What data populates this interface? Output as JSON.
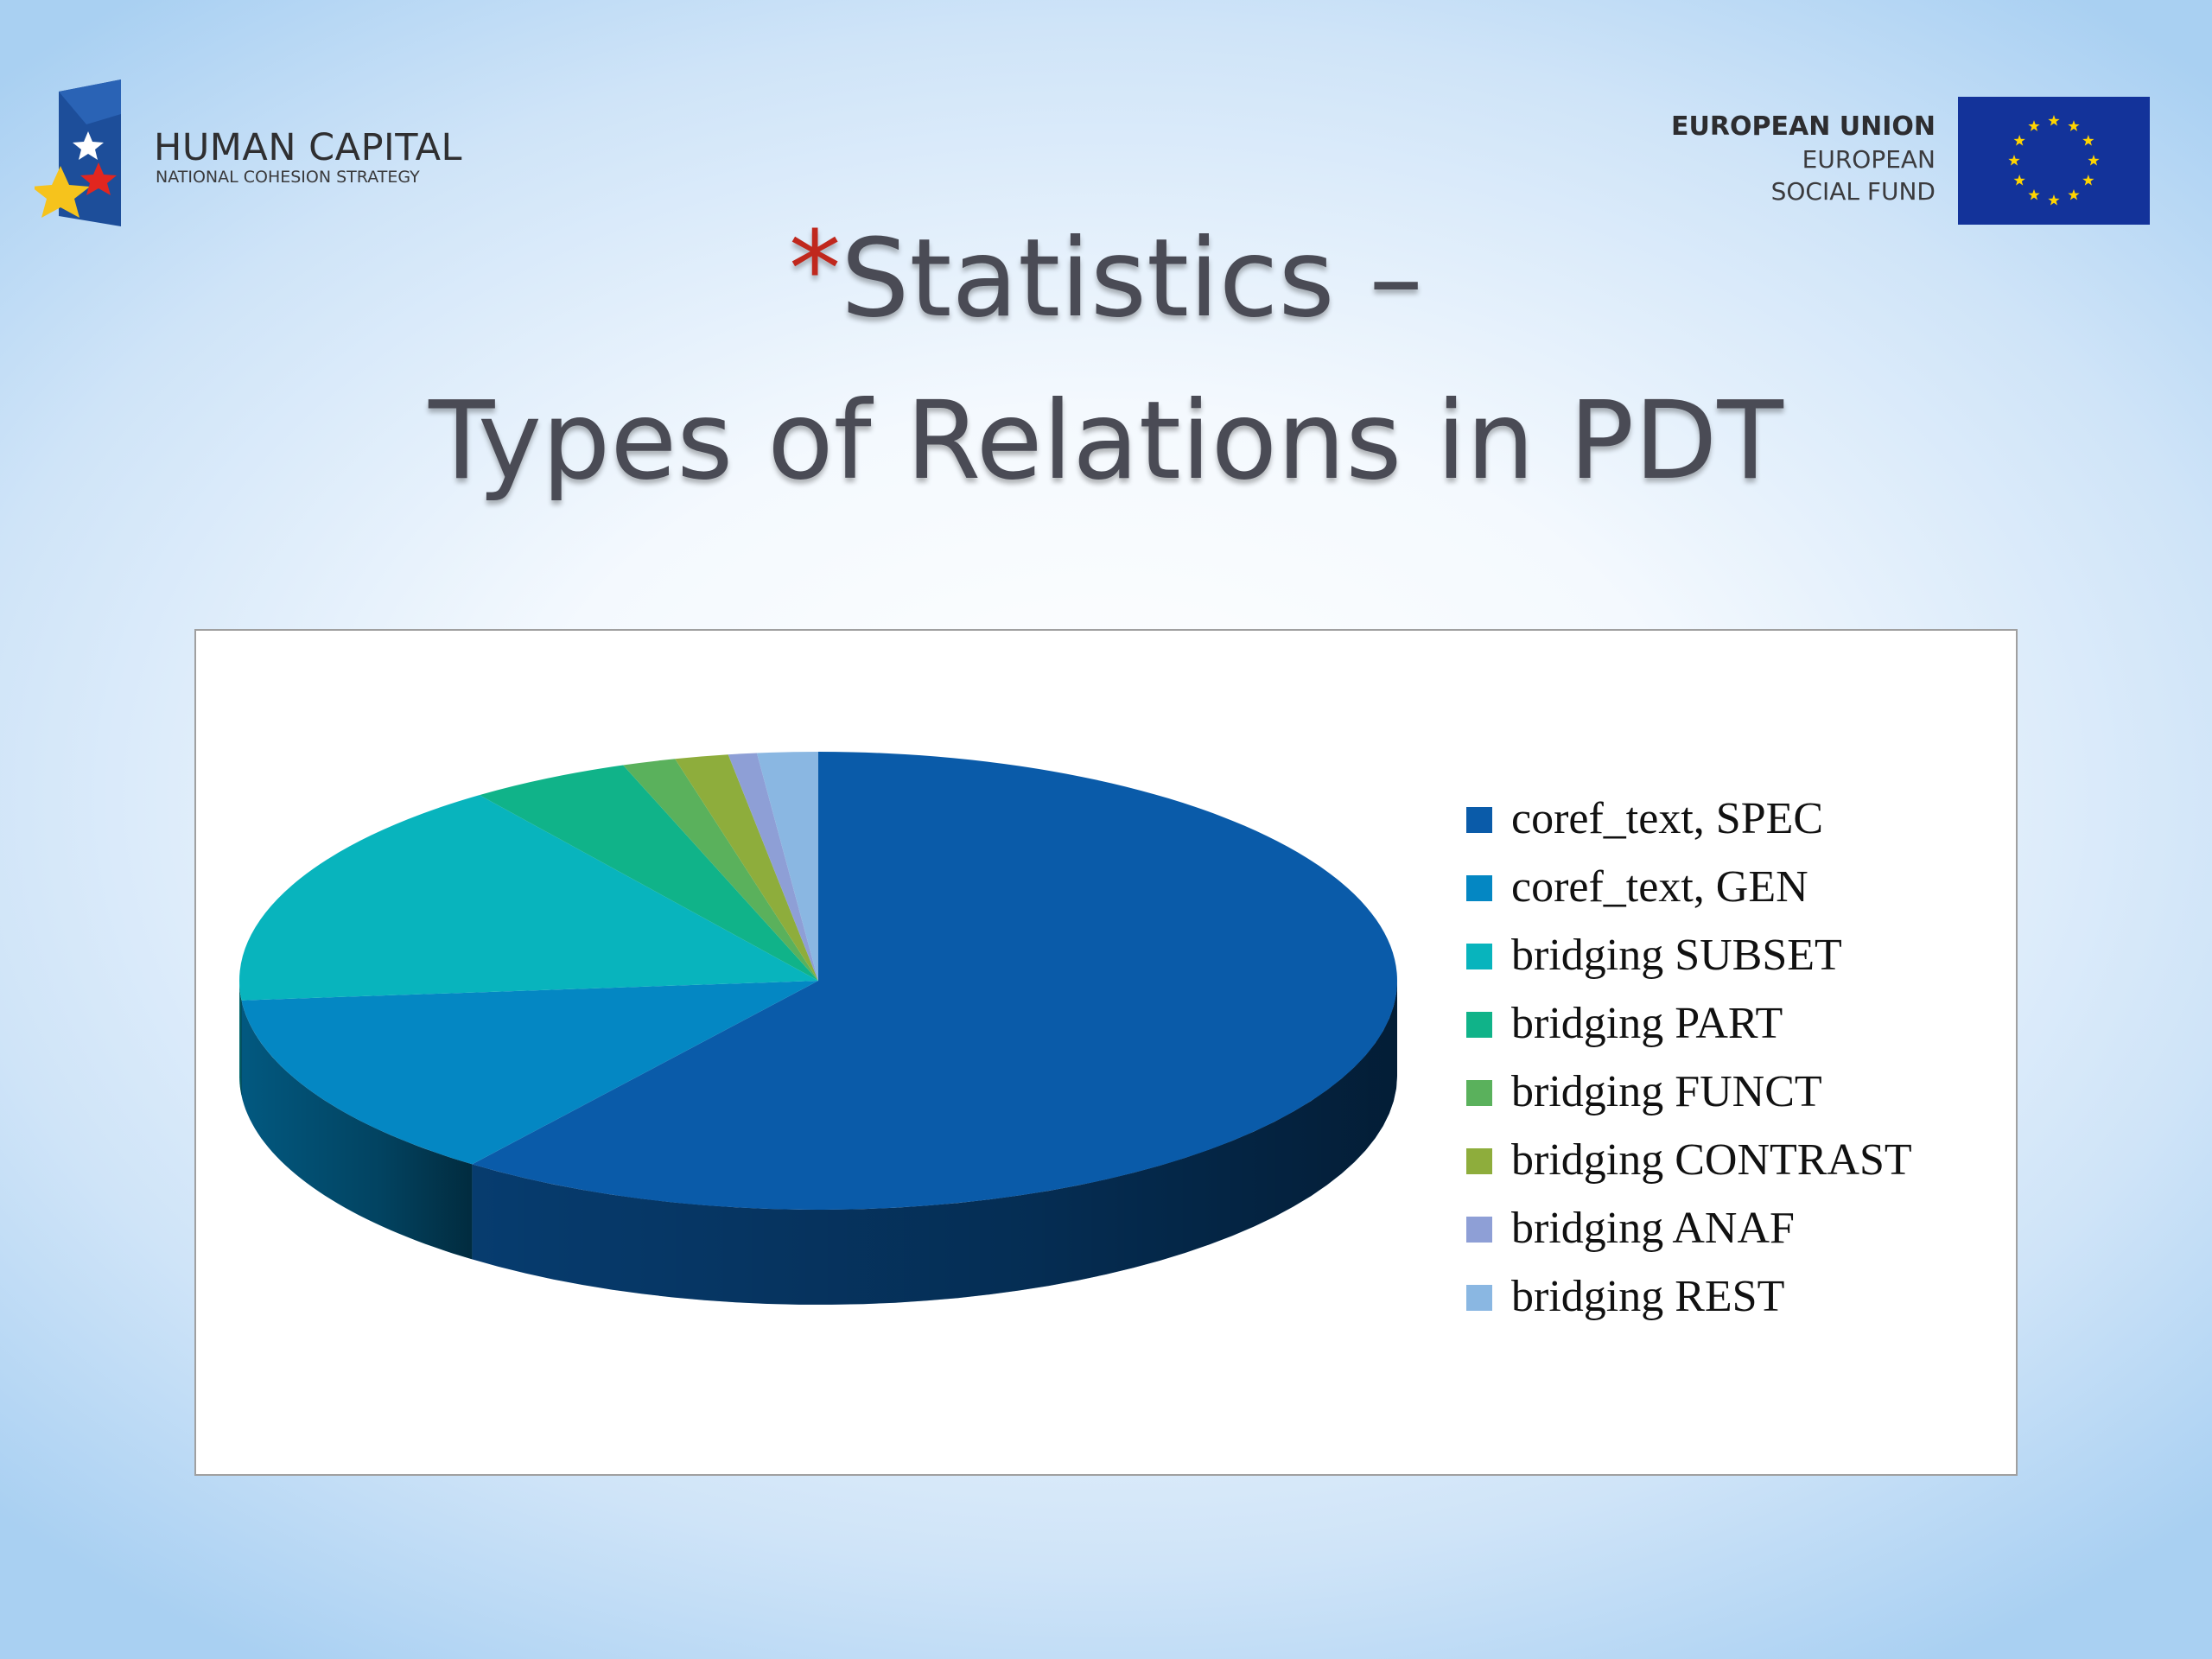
{
  "logos": {
    "human_capital": {
      "title": "HUMAN CAPITAL",
      "subtitle": "NATIONAL COHESION STRATEGY"
    },
    "eu": {
      "line1": "EUROPEAN UNION",
      "line2": "EUROPEAN",
      "line3": "SOCIAL FUND"
    }
  },
  "slide": {
    "bullet": "*",
    "title_line1": "Statistics –",
    "title_line2": "Types of Relations in PDT"
  },
  "chart_data": {
    "type": "pie",
    "title": "",
    "categories": [
      "coref_text, SPEC",
      "coref_text, GEN",
      "bridging SUBSET",
      "bridging PART",
      "bridging FUNCT",
      "bridging CONTRAST",
      "bridging ANAF",
      "bridging REST"
    ],
    "values": [
      60.5,
      13.5,
      16.5,
      4.5,
      1.5,
      1.5,
      0.8,
      1.7
    ],
    "unit": "%",
    "colors": [
      "#0a5ba9",
      "#0487c3",
      "#08b4bd",
      "#10b389",
      "#5ab15c",
      "#8ead3c",
      "#8e9fd6",
      "#8ab7e2"
    ],
    "legend_position": "right",
    "style": "3d"
  }
}
